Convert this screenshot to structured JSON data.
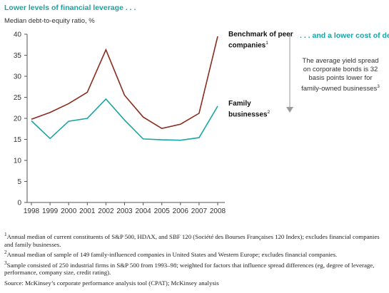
{
  "header": {
    "left_title": "Lower levels of financial leverage . . .",
    "right_title": ". . . and a lower cost of debt"
  },
  "right_note": {
    "text": "The average yield spread on corporate bonds is 32 basis points lower for family-owned businesses",
    "marker": "3"
  },
  "labels": {
    "peer_line1": "Benchmark of peer",
    "peer_line2": "companies",
    "peer_marker": "1",
    "family_line1": "Family",
    "family_line2": "businesses",
    "family_marker": "2"
  },
  "chart_data": {
    "type": "line",
    "title": "Lower levels of financial leverage . . .",
    "ylabel": "Median debt-to-equity ratio, %",
    "xlabel": "",
    "x": [
      1998,
      1999,
      2000,
      2001,
      2002,
      2003,
      2004,
      2005,
      2006,
      2007,
      2008
    ],
    "ylim": [
      0,
      40
    ],
    "yticks": [
      0,
      5,
      10,
      15,
      20,
      25,
      30,
      35,
      40
    ],
    "grid": false,
    "series": [
      {
        "name": "Benchmark of peer companies",
        "color": "#8b2b1e",
        "values": [
          19.8,
          21.4,
          23.5,
          26.2,
          36.3,
          25.5,
          20.3,
          17.6,
          18.6,
          21.2,
          39.5
        ]
      },
      {
        "name": "Family businesses",
        "color": "#1aa3a3",
        "values": [
          19.4,
          15.2,
          19.3,
          20.0,
          24.6,
          19.6,
          15.1,
          14.9,
          14.8,
          15.4,
          22.9
        ]
      }
    ]
  },
  "footnotes": [
    {
      "marker": "1",
      "text": "Annual median of current constituents of S&P 500, HDAX, and SBF 120 (Société des Bourses Françaises 120 Index); excludes financial companies and family businesses."
    },
    {
      "marker": "2",
      "text": "Annual median of sample of 149 family-influenced companies in United States and Western Europe; excludes financial companies."
    },
    {
      "marker": "3",
      "text": "Sample consisted of 250 industrial firms in S&P 500 from 1993–98; weighted for factors that influence spread differences (eg, degree of leverage, performance, company size, credit rating)."
    }
  ],
  "source": "Source: McKinsey’s corporate performance analysis tool (CPAT); McKinsey analysis"
}
